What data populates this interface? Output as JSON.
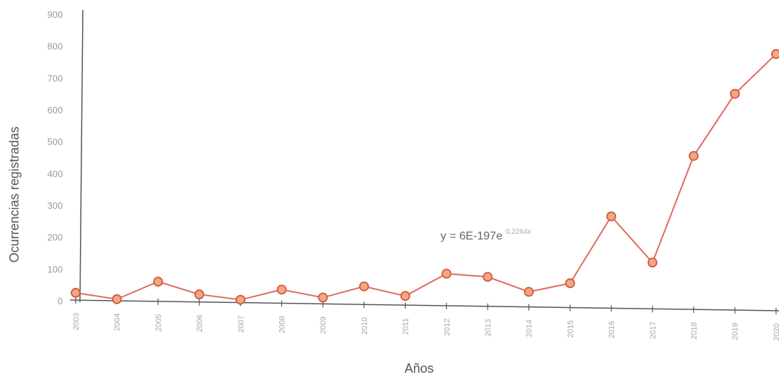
{
  "chart_data": {
    "type": "line",
    "x": [
      "2003",
      "2004",
      "2005",
      "2006",
      "2007",
      "2008",
      "2009",
      "2010",
      "2011",
      "2012",
      "2013",
      "2014",
      "2015",
      "2016",
      "2017",
      "2018",
      "2019",
      "2020"
    ],
    "series": [
      {
        "values": [
          25,
          5,
          60,
          20,
          3,
          35,
          10,
          45,
          15,
          85,
          75,
          28,
          55,
          265,
          120,
          455,
          650,
          775
        ]
      }
    ],
    "yticks": [
      "0",
      "100",
      "200",
      "300",
      "400",
      "500",
      "600",
      "700",
      "800",
      "900"
    ],
    "ylim": [
      0,
      900
    ],
    "xlabel": "Años",
    "ylabel": "Ocurrencias registradas",
    "annotation": {
      "text": "y = 6E-197e",
      "exponent": "0,2264x"
    },
    "grid": false,
    "legend": "none",
    "colors": {
      "line": "#e06a60",
      "marker_fill": "#f0a882",
      "marker_stroke": "#d4573f",
      "axis": "#555555"
    }
  }
}
